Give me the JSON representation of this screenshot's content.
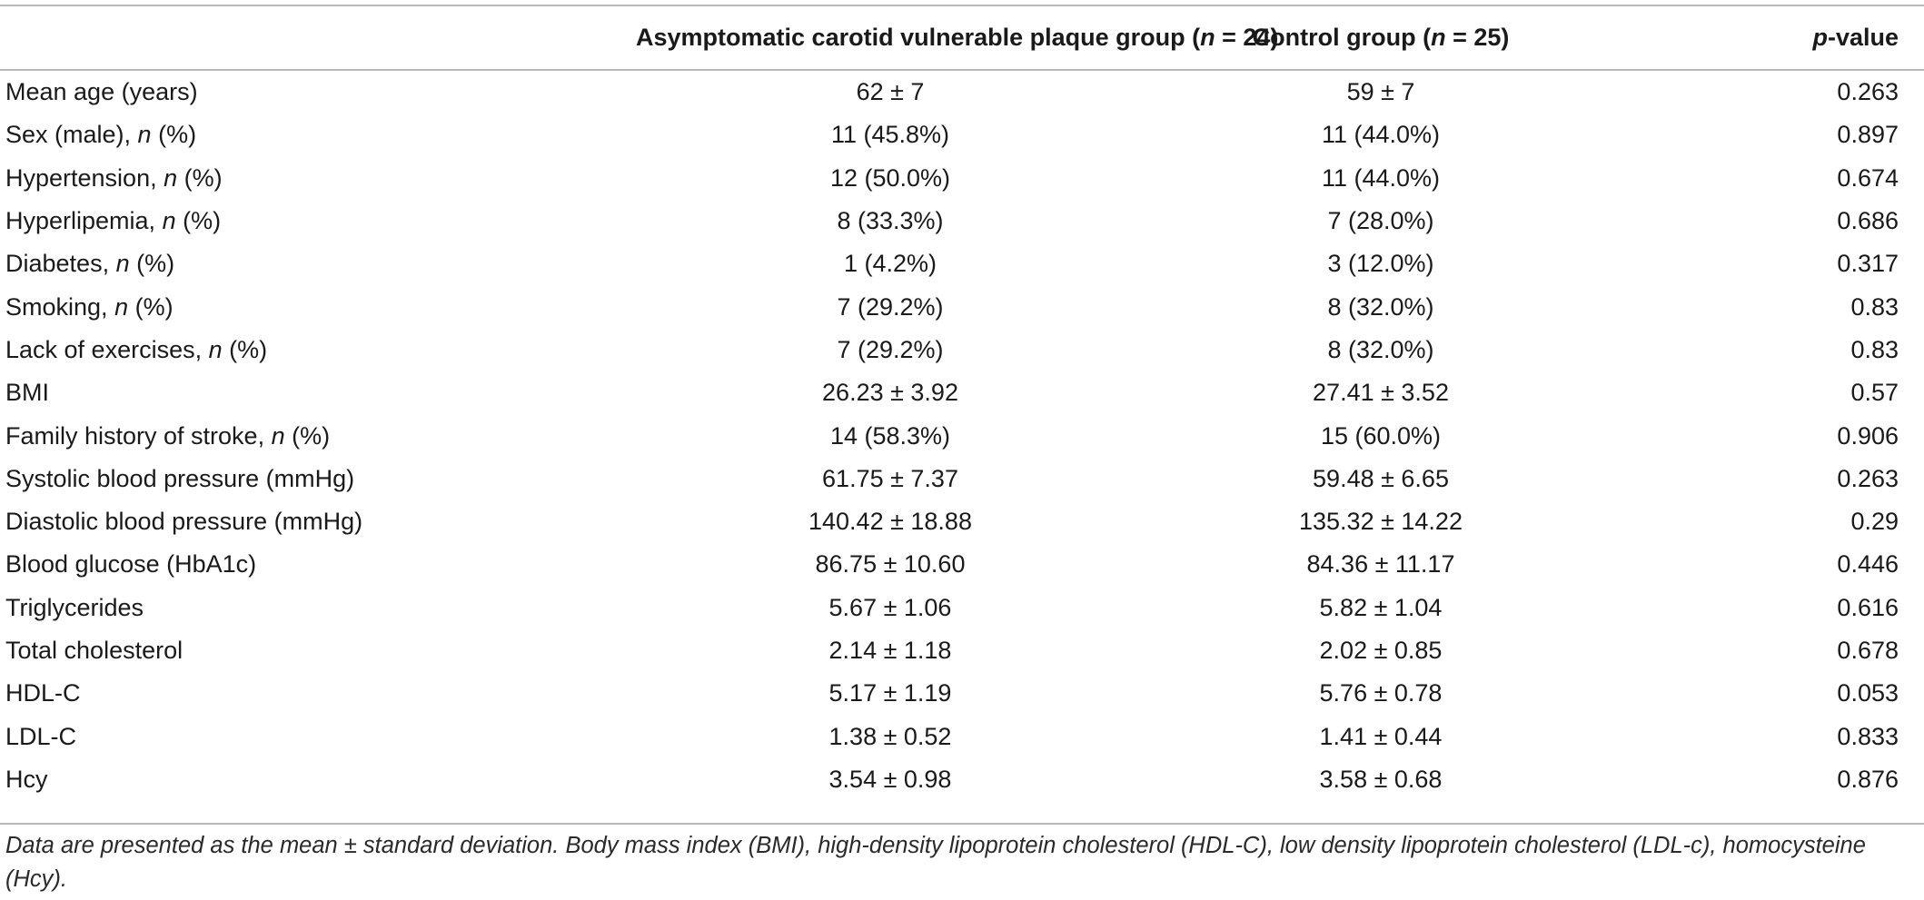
{
  "header": {
    "label": "",
    "group_main": "Asymptomatic carotid vulnerable plaque group (",
    "group_n": "n",
    "group_count": " = 24)",
    "control_main": "Control group (",
    "control_n": "n",
    "control_count": " = 25)",
    "p_italic": "p",
    "p_rest": "-value"
  },
  "rows": [
    {
      "label": "Mean age (years)",
      "italic": "",
      "suffix": "",
      "group": "62 ± 7",
      "control": "59 ± 7",
      "p": "0.263"
    },
    {
      "label": "Sex (male), ",
      "italic": "n",
      "suffix": " (%)",
      "group": "11 (45.8%)",
      "control": "11 (44.0%)",
      "p": "0.897"
    },
    {
      "label": "Hypertension, ",
      "italic": "n",
      "suffix": " (%)",
      "group": "12 (50.0%)",
      "control": "11 (44.0%)",
      "p": "0.674"
    },
    {
      "label": "Hyperlipemia, ",
      "italic": "n",
      "suffix": " (%)",
      "group": "8 (33.3%)",
      "control": "7 (28.0%)",
      "p": "0.686"
    },
    {
      "label": "Diabetes, ",
      "italic": "n",
      "suffix": " (%)",
      "group": "1 (4.2%)",
      "control": "3 (12.0%)",
      "p": "0.317"
    },
    {
      "label": "Smoking, ",
      "italic": "n",
      "suffix": " (%)",
      "group": "7 (29.2%)",
      "control": "8 (32.0%)",
      "p": "0.83"
    },
    {
      "label": "Lack of exercises, ",
      "italic": "n",
      "suffix": " (%)",
      "group": "7 (29.2%)",
      "control": "8 (32.0%)",
      "p": "0.83"
    },
    {
      "label": "BMI",
      "italic": "",
      "suffix": "",
      "group": "26.23 ± 3.92",
      "control": "27.41 ± 3.52",
      "p": "0.57"
    },
    {
      "label": "Family history of stroke, ",
      "italic": "n",
      "suffix": " (%)",
      "group": "14 (58.3%)",
      "control": "15 (60.0%)",
      "p": "0.906"
    },
    {
      "label": "Systolic blood pressure (mmHg)",
      "italic": "",
      "suffix": "",
      "group": "61.75 ± 7.37",
      "control": "59.48 ± 6.65",
      "p": "0.263"
    },
    {
      "label": "Diastolic blood pressure (mmHg)",
      "italic": "",
      "suffix": "",
      "group": "140.42 ± 18.88",
      "control": "135.32 ± 14.22",
      "p": "0.29"
    },
    {
      "label": "Blood glucose (HbA1c)",
      "italic": "",
      "suffix": "",
      "group": "86.75 ± 10.60",
      "control": "84.36 ± 11.17",
      "p": "0.446"
    },
    {
      "label": "Triglycerides",
      "italic": "",
      "suffix": "",
      "group": "5.67 ± 1.06",
      "control": "5.82 ± 1.04",
      "p": "0.616"
    },
    {
      "label": "Total cholesterol",
      "italic": "",
      "suffix": "",
      "group": "2.14 ± 1.18",
      "control": "2.02 ± 0.85",
      "p": "0.678"
    },
    {
      "label": "HDL-C",
      "italic": "",
      "suffix": "",
      "group": "5.17 ± 1.19",
      "control": "5.76 ± 0.78",
      "p": "0.053"
    },
    {
      "label": "LDL-C",
      "italic": "",
      "suffix": "",
      "group": "1.38 ± 0.52",
      "control": "1.41 ± 0.44",
      "p": "0.833"
    },
    {
      "label": "Hcy",
      "italic": "",
      "suffix": "",
      "group": "3.54 ± 0.98",
      "control": "3.58 ± 0.68",
      "p": "0.876"
    }
  ],
  "footnote": "Data are presented as the mean ± standard deviation. Body mass index (BMI), high-density lipoprotein cholesterol (HDL-C), low density lipoprotein cholesterol (LDL-c), homocysteine (Hcy)."
}
